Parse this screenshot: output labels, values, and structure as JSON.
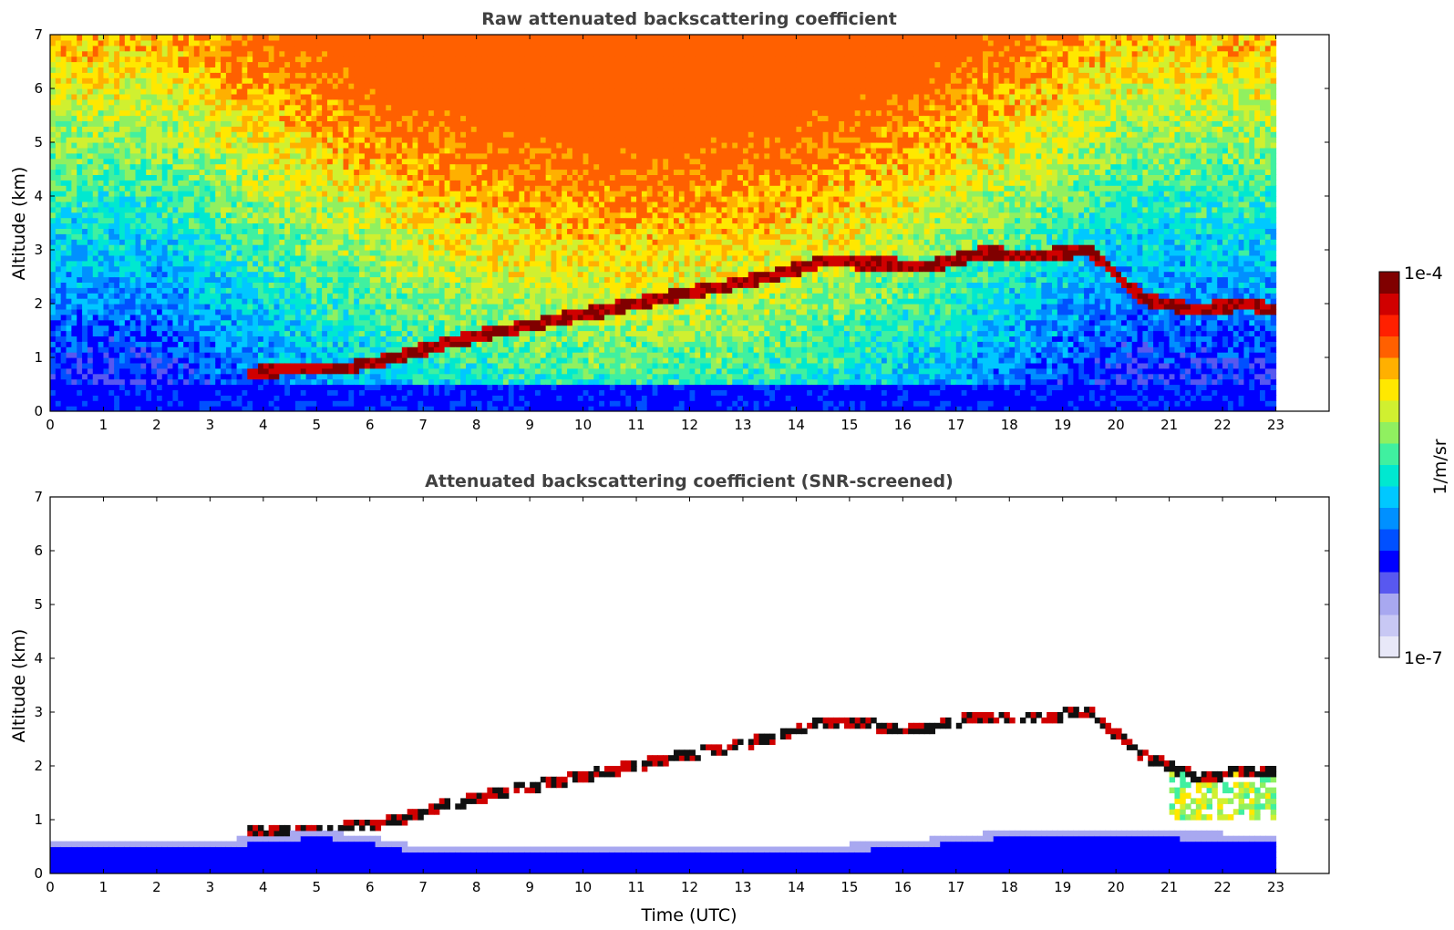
{
  "chart_data": [
    {
      "type": "heatmap",
      "title": "Raw attenuated backscattering coefficient",
      "xlabel": "",
      "ylabel": "Altitude (km)",
      "xlim": [
        0,
        24
      ],
      "ylim": [
        0,
        7
      ],
      "x_ticks": [
        "0",
        "1",
        "2",
        "3",
        "4",
        "5",
        "6",
        "7",
        "8",
        "9",
        "10",
        "11",
        "12",
        "13",
        "14",
        "15",
        "16",
        "17",
        "18",
        "19",
        "20",
        "21",
        "22",
        "23"
      ],
      "y_ticks": [
        "0",
        "1",
        "2",
        "3",
        "4",
        "5",
        "6",
        "7"
      ],
      "data_time_range": [
        0,
        23
      ],
      "scale": "log",
      "features": {
        "near_surface_signal_top_km": 0.5,
        "cloud_layer": {
          "time_h": [
            3.7,
            4.5,
            5.5,
            6.5,
            7.5,
            8.5,
            9.5,
            10.5,
            11.5,
            12.5,
            13.5,
            14.5,
            15.5,
            16.5,
            17.5,
            18.5,
            19.5,
            20.5,
            21.5,
            22.5,
            23.0
          ],
          "altitude_km": [
            0.7,
            0.8,
            0.8,
            1.0,
            1.3,
            1.5,
            1.7,
            1.9,
            2.1,
            2.3,
            2.5,
            2.8,
            2.75,
            2.7,
            2.95,
            2.9,
            3.0,
            2.1,
            1.9,
            2.0,
            1.9
          ]
        },
        "noise_high_altitude": "increasing toward midday"
      }
    },
    {
      "type": "heatmap",
      "title": "Attenuated backscattering coefficient (SNR-screened)",
      "xlabel": "Time (UTC)",
      "ylabel": "Altitude (km)",
      "xlim": [
        0,
        24
      ],
      "ylim": [
        0,
        7
      ],
      "x_ticks": [
        "0",
        "1",
        "2",
        "3",
        "4",
        "5",
        "6",
        "7",
        "8",
        "9",
        "10",
        "11",
        "12",
        "13",
        "14",
        "15",
        "16",
        "17",
        "18",
        "19",
        "20",
        "21",
        "22",
        "23"
      ],
      "y_ticks": [
        "0",
        "1",
        "2",
        "3",
        "4",
        "5",
        "6",
        "7"
      ],
      "data_time_range": [
        0,
        23
      ],
      "scale": "log",
      "features": {
        "boundary_layer_top_km": {
          "time_h": [
            0,
            3,
            4,
            5,
            6,
            7,
            8,
            10,
            12,
            14,
            16,
            18,
            20,
            22,
            23
          ],
          "altitude_km": [
            0.65,
            0.6,
            0.7,
            0.8,
            0.7,
            0.5,
            0.5,
            0.5,
            0.5,
            0.5,
            0.6,
            0.8,
            0.8,
            0.75,
            0.7
          ]
        },
        "cloud_layer": {
          "time_h": [
            3.7,
            4.5,
            5.5,
            6.5,
            7.5,
            8.5,
            9.5,
            10.5,
            11.5,
            12.5,
            13.5,
            14.5,
            15.5,
            16.5,
            17.5,
            18.5,
            19.5,
            20.5,
            21.5,
            22.5,
            23.0
          ],
          "altitude_km": [
            0.75,
            0.8,
            0.85,
            1.0,
            1.3,
            1.5,
            1.7,
            1.9,
            2.1,
            2.3,
            2.5,
            2.8,
            2.75,
            2.7,
            2.95,
            2.9,
            3.0,
            2.2,
            1.8,
            1.9,
            1.9
          ]
        }
      }
    }
  ],
  "colorbar": {
    "label": "1/m/sr",
    "max_label": "1e-4",
    "min_label": "1e-7",
    "colors": [
      "#e8e8f8",
      "#c8c8f4",
      "#a8a8f0",
      "#5858f0",
      "#0000ff",
      "#0050ff",
      "#0090ff",
      "#00c8ff",
      "#00e8d0",
      "#40f0a0",
      "#90f060",
      "#d0f030",
      "#ffe800",
      "#ffb000",
      "#ff6000",
      "#ff2000",
      "#d00000",
      "#800000"
    ]
  },
  "colors": {
    "surface_blue": "#0a18f0",
    "cloud_red": "#b81000",
    "cloud_black": "#101010",
    "gap_white": "#ffffff"
  }
}
